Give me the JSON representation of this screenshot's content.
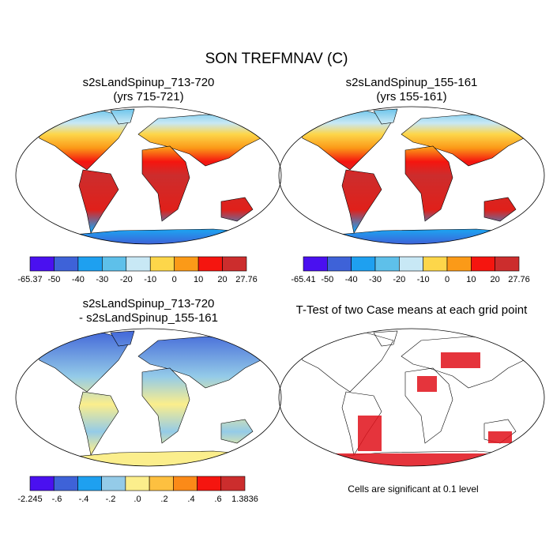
{
  "title": "SON TREFMNAV (C)",
  "panels": [
    {
      "title": [
        "s2sLandSpinup_713-720",
        "(yrs 715-721)"
      ],
      "colorbar": {
        "colors": [
          "#4a10f0",
          "#3e62d8",
          "#1ea0f0",
          "#5ec0ea",
          "#c8e8f5",
          "#fdd64a",
          "#fb9a18",
          "#f5150f",
          "#cc2d2d"
        ],
        "labels": [
          "-65.37",
          "-50",
          "-40",
          "-30",
          "-20",
          "-10",
          "0",
          "10",
          "20",
          "27.76"
        ]
      }
    },
    {
      "title": [
        "s2sLandSpinup_155-161",
        "(yrs 155-161)"
      ],
      "colorbar": {
        "colors": [
          "#4a10f0",
          "#3e62d8",
          "#1ea0f0",
          "#5ec0ea",
          "#c8e8f5",
          "#fdd64a",
          "#fb9a18",
          "#f5150f",
          "#cc2d2d"
        ],
        "labels": [
          "-65.41",
          "-50",
          "-40",
          "-30",
          "-20",
          "-10",
          "0",
          "10",
          "20",
          "27.76"
        ]
      }
    },
    {
      "title": [
        "s2sLandSpinup_713-720",
        "- s2sLandSpinup_155-161"
      ],
      "colorbar": {
        "colors": [
          "#4a10f0",
          "#3e62d8",
          "#1ea0f0",
          "#94cbe8",
          "#fbee8c",
          "#fdc040",
          "#fb8a18",
          "#f5150f",
          "#cc2d2d"
        ],
        "labels": [
          "-2.245",
          "-.6",
          "-.4",
          "-.2",
          ".0",
          ".2",
          ".4",
          ".6",
          "1.3836"
        ]
      }
    },
    {
      "title": [
        "T-Test of two Case means at each grid point"
      ],
      "note": "Cells are significant at 0.1 level"
    }
  ]
}
